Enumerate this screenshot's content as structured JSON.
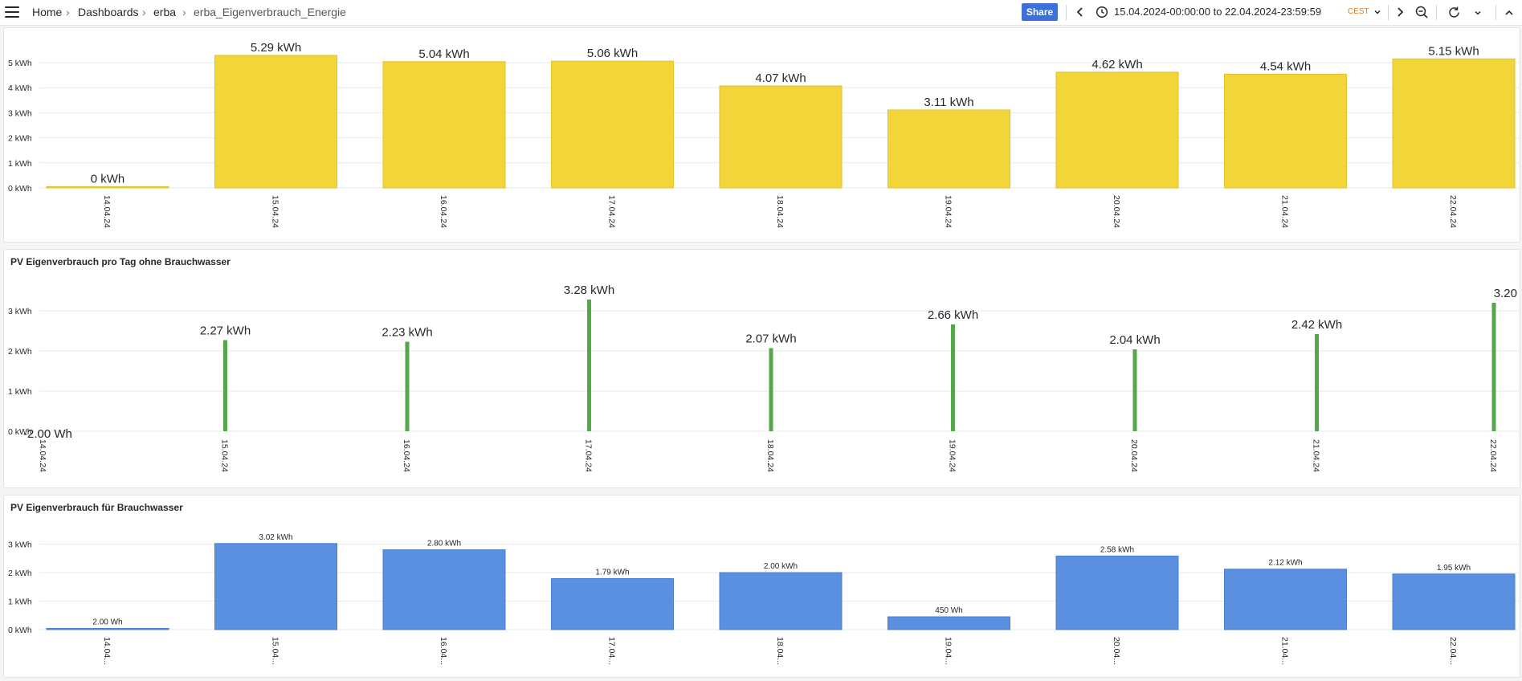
{
  "header": {
    "breadcrumb": [
      "Home",
      "Dashboards",
      "erba",
      "erba_Eigenverbrauch_Energie"
    ],
    "separator": "›",
    "share_label": "Share",
    "time_range": "15.04.2024-00:00:00 to 22.04.2024-23:59:59",
    "timezone": "CEST",
    "icons": [
      "menu-icon",
      "chevron-left-icon",
      "clock-icon",
      "chevron-down-icon",
      "chevron-right-icon",
      "zoom-out-icon",
      "refresh-icon",
      "chevron-down-icon",
      "collapse-icon"
    ]
  },
  "colors": {
    "yellow": "#f2d539",
    "green": "#56a64b",
    "blue": "#5b8fe0",
    "orange": "#e57c1d",
    "share": "#3d71d9"
  },
  "panels": [
    {
      "title": ""
    },
    {
      "title": "PV Eigenverbrauch pro Tag ohne Brauchwasser"
    },
    {
      "title": "PV Eigenverbrauch für Brauchwasser"
    }
  ],
  "chart_data": [
    {
      "type": "bar",
      "categories": [
        "14.04.24",
        "15.04.24",
        "16.04.24",
        "17.04.24",
        "18.04.24",
        "19.04.24",
        "20.04.24",
        "21.04.24",
        "22.04.24"
      ],
      "values": [
        0,
        5.29,
        5.04,
        5.06,
        4.07,
        3.11,
        4.62,
        4.54,
        5.15
      ],
      "value_labels": [
        "0 kWh",
        "5.29 kWh",
        "5.04 kWh",
        "5.06 kWh",
        "4.07 kWh",
        "3.11 kWh",
        "4.62 kWh",
        "4.54 kWh",
        "5.15 kWh"
      ],
      "yticks": [
        "0 kWh",
        "1 kWh",
        "2 kWh",
        "3 kWh",
        "4 kWh",
        "5 kWh"
      ],
      "ylim": [
        0,
        5.5
      ],
      "color": "#f2d539",
      "grid": true
    },
    {
      "type": "bar",
      "categories": [
        "14.04.24",
        "15.04.24",
        "16.04.24",
        "17.04.24",
        "18.04.24",
        "19.04.24",
        "20.04.24",
        "21.04.24",
        "22.04.24"
      ],
      "values": [
        -0.002,
        2.27,
        2.23,
        3.28,
        2.07,
        2.66,
        2.04,
        2.42,
        3.2
      ],
      "value_labels": [
        "-2.00 Wh",
        "2.27 kWh",
        "2.23 kWh",
        "3.28 kWh",
        "2.07 kWh",
        "2.66 kWh",
        "2.04 kWh",
        "2.42 kWh",
        "3.20"
      ],
      "yticks": [
        "0 kWh",
        "1 kWh",
        "2 kWh",
        "3 kWh"
      ],
      "ylim": [
        0,
        3.4
      ],
      "color": "#56a64b",
      "grid": true
    },
    {
      "type": "bar",
      "categories": [
        "14.04...",
        "15.04...",
        "16.04...",
        "17.04...",
        "18.04...",
        "19.04...",
        "20.04...",
        "21.04...",
        "22.04..."
      ],
      "values": [
        0.002,
        3.02,
        2.8,
        1.79,
        2.0,
        0.45,
        2.58,
        2.12,
        1.95
      ],
      "value_labels": [
        "2.00 Wh",
        "3.02 kWh",
        "2.80 kWh",
        "1.79 kWh",
        "2.00 kWh",
        "450 Wh",
        "2.58 kWh",
        "2.12 kWh",
        "1.95 kWh"
      ],
      "yticks": [
        "0 kWh",
        "1 kWh",
        "2 kWh",
        "3 kWh"
      ],
      "ylim": [
        0,
        3.4
      ],
      "color": "#5b8fe0",
      "grid": true
    }
  ]
}
